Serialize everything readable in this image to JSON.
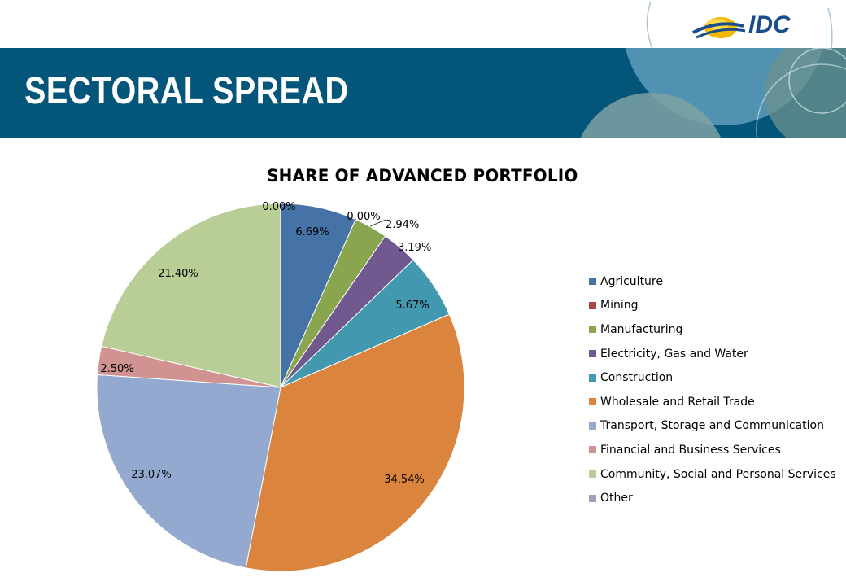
{
  "header": {
    "title": "SECTORAL SPREAD",
    "logo_text": "IDC"
  },
  "colors": {
    "banner": "#03557a",
    "logo": "#1a4d8c"
  },
  "chart_data": {
    "type": "pie",
    "title": "SHARE OF ADVANCED PORTFOLIO",
    "categories": [
      "Agriculture",
      "Mining",
      "Manufacturing",
      "Electricity, Gas and Water",
      "Construction",
      "Wholesale and Retail Trade",
      "Transport, Storage and Communication",
      "Financial and Business Services",
      "Community, Social and Personal Services",
      "Other"
    ],
    "values": [
      6.69,
      0.0,
      2.94,
      3.19,
      5.67,
      34.54,
      23.07,
      2.5,
      21.4,
      0.0
    ],
    "data_labels": [
      "6.69%",
      "0.00%",
      "2.94%",
      "3.19%",
      "5.67%",
      "34.54%",
      "23.07%",
      "2.50%",
      "21.40%",
      "0.00%"
    ],
    "colors": [
      "#4572a7",
      "#aa4643",
      "#89a54e",
      "#71588f",
      "#4198af",
      "#db843d",
      "#93a9cf",
      "#d19392",
      "#b9cd96",
      "#a99bbd"
    ],
    "legend_position": "right"
  }
}
